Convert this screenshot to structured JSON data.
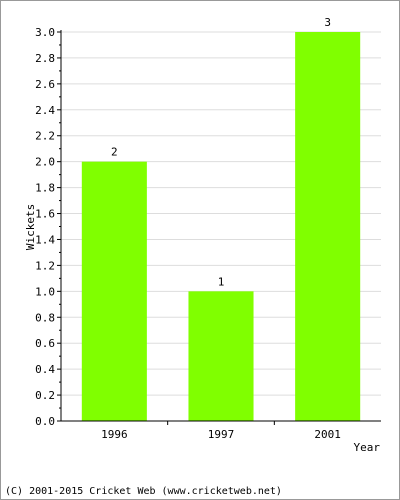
{
  "chart_data": {
    "type": "bar",
    "categories": [
      "1996",
      "1997",
      "2001"
    ],
    "values": [
      2,
      1,
      3
    ],
    "data_labels": [
      "2",
      "1",
      "3"
    ],
    "title": "",
    "xlabel": "Year",
    "ylabel": "Wickets",
    "ylim": [
      0,
      3.0
    ],
    "yticks": [
      "0.0",
      "0.2",
      "0.4",
      "0.6",
      "0.8",
      "1.0",
      "1.2",
      "1.4",
      "1.6",
      "1.8",
      "2.0",
      "2.2",
      "2.4",
      "2.6",
      "2.8",
      "3.0"
    ],
    "grid": true,
    "bar_color": "#80ff00",
    "grid_color": "#dddddd"
  },
  "footer": {
    "copyright": "(C) 2001-2015 Cricket Web (www.cricketweb.net)"
  }
}
